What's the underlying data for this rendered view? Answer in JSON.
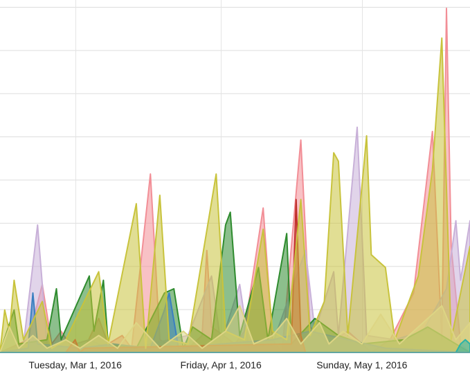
{
  "chart_data": {
    "type": "area",
    "title": "",
    "xlabel": "",
    "ylabel": "",
    "x_tick_labels": [
      {
        "label": "Tuesday, Mar 1, 2016",
        "date": "2016-03-01"
      },
      {
        "label": "Friday, Apr 1, 2016",
        "date": "2016-04-01"
      },
      {
        "label": "Sunday, May 1, 2016",
        "date": "2016-05-01"
      }
    ],
    "x_range": [
      "2016-02-14",
      "2016-05-24"
    ],
    "y_gridlines": 8,
    "grid": true,
    "legend": "none",
    "series": [
      {
        "color": "#f28e96",
        "points": [
          [
            "2016-02-14",
            0
          ],
          [
            "2016-02-20",
            0.3
          ],
          [
            "2016-02-23",
            1.6
          ],
          [
            "2016-02-25",
            0.2
          ],
          [
            "2016-02-27",
            0.5
          ],
          [
            "2016-03-01",
            0
          ],
          [
            "2016-03-03",
            0.1
          ],
          [
            "2016-03-06",
            0.8
          ],
          [
            "2016-03-08",
            0.2
          ],
          [
            "2016-03-11",
            0.4
          ],
          [
            "2016-03-13",
            0.1
          ],
          [
            "2016-03-17",
            4.2
          ],
          [
            "2016-03-19",
            0.3
          ],
          [
            "2016-03-24",
            0
          ],
          [
            "2016-03-28",
            0.4
          ],
          [
            "2016-03-29",
            2.4
          ],
          [
            "2016-03-30",
            0.6
          ],
          [
            "2016-04-04",
            0.2
          ],
          [
            "2016-04-06",
            0.5
          ],
          [
            "2016-04-10",
            3.4
          ],
          [
            "2016-04-12",
            0.3
          ],
          [
            "2016-04-14",
            0
          ],
          [
            "2016-04-18",
            5.0
          ],
          [
            "2016-04-20",
            0.6
          ],
          [
            "2016-04-24",
            0.2
          ],
          [
            "2016-04-28",
            0.5
          ],
          [
            "2016-05-03",
            0
          ],
          [
            "2016-05-07",
            0.3
          ],
          [
            "2016-05-12",
            1.4
          ],
          [
            "2016-05-16",
            5.2
          ],
          [
            "2016-05-18",
            0.3
          ],
          [
            "2016-05-19",
            8.1
          ],
          [
            "2016-05-20",
            2.5
          ],
          [
            "2016-05-22",
            0.2
          ],
          [
            "2016-05-24",
            0
          ]
        ]
      },
      {
        "color": "#c8b0d8",
        "points": [
          [
            "2016-02-14",
            0
          ],
          [
            "2016-02-19",
            0.2
          ],
          [
            "2016-02-22",
            3.0
          ],
          [
            "2016-02-24",
            0.2
          ],
          [
            "2016-02-27",
            0.1
          ],
          [
            "2016-03-04",
            0.3
          ],
          [
            "2016-03-10",
            0
          ],
          [
            "2016-03-17",
            0.2
          ],
          [
            "2016-03-25",
            0.4
          ],
          [
            "2016-03-30",
            1.8
          ],
          [
            "2016-04-01",
            0.2
          ],
          [
            "2016-04-05",
            1.6
          ],
          [
            "2016-04-07",
            0.1
          ],
          [
            "2016-04-12",
            0.2
          ],
          [
            "2016-04-19",
            2.4
          ],
          [
            "2016-04-21",
            0.5
          ],
          [
            "2016-04-25",
            1.9
          ],
          [
            "2016-04-26",
            0.4
          ],
          [
            "2016-04-30",
            5.3
          ],
          [
            "2016-05-02",
            0.4
          ],
          [
            "2016-05-08",
            0.3
          ],
          [
            "2016-05-14",
            0.5
          ],
          [
            "2016-05-19",
            1.5
          ],
          [
            "2016-05-21",
            3.1
          ],
          [
            "2016-05-22",
            1.7
          ],
          [
            "2016-05-24",
            3.1
          ]
        ]
      },
      {
        "color": "#2e8b2e",
        "points": [
          [
            "2016-02-14",
            0
          ],
          [
            "2016-02-17",
            1.0
          ],
          [
            "2016-02-18",
            0.2
          ],
          [
            "2016-02-24",
            0.3
          ],
          [
            "2016-02-26",
            1.5
          ],
          [
            "2016-02-27",
            0.3
          ],
          [
            "2016-03-04",
            1.8
          ],
          [
            "2016-03-05",
            0.5
          ],
          [
            "2016-03-07",
            1.7
          ],
          [
            "2016-03-08",
            0.2
          ],
          [
            "2016-03-14",
            0.1
          ],
          [
            "2016-03-20",
            1.4
          ],
          [
            "2016-03-22",
            1.5
          ],
          [
            "2016-03-24",
            0.1
          ],
          [
            "2016-03-26",
            0.6
          ],
          [
            "2016-03-30",
            0.3
          ],
          [
            "2016-04-02",
            3.0
          ],
          [
            "2016-04-03",
            3.3
          ],
          [
            "2016-04-05",
            0.4
          ],
          [
            "2016-04-09",
            2.0
          ],
          [
            "2016-04-11",
            0.3
          ],
          [
            "2016-04-15",
            2.8
          ],
          [
            "2016-04-16",
            0.2
          ],
          [
            "2016-04-21",
            0.8
          ],
          [
            "2016-04-26",
            0.4
          ],
          [
            "2016-05-01",
            0.2
          ],
          [
            "2016-05-10",
            0.3
          ],
          [
            "2016-05-15",
            0.6
          ],
          [
            "2016-05-24",
            0
          ]
        ]
      },
      {
        "color": "#3a7fc0",
        "points": [
          [
            "2016-02-14",
            0
          ],
          [
            "2016-02-20",
            0.1
          ],
          [
            "2016-02-21",
            1.4
          ],
          [
            "2016-02-22",
            0.2
          ],
          [
            "2016-03-02",
            0.1
          ],
          [
            "2016-03-09",
            0.2
          ],
          [
            "2016-03-17",
            0.1
          ],
          [
            "2016-03-20",
            1.0
          ],
          [
            "2016-03-21",
            1.4
          ],
          [
            "2016-03-23",
            0.1
          ],
          [
            "2016-04-01",
            0.2
          ],
          [
            "2016-04-12",
            0.3
          ],
          [
            "2016-04-20",
            0.5
          ],
          [
            "2016-05-06",
            0.1
          ],
          [
            "2016-05-24",
            0
          ]
        ]
      },
      {
        "color": "#c0302c",
        "points": [
          [
            "2016-02-14",
            0
          ],
          [
            "2016-02-28",
            0
          ],
          [
            "2016-03-01",
            0.3
          ],
          [
            "2016-03-02",
            0
          ],
          [
            "2016-03-03",
            0.1
          ],
          [
            "2016-04-16",
            0.2
          ],
          [
            "2016-04-17",
            3.6
          ],
          [
            "2016-04-18",
            0.4
          ],
          [
            "2016-04-19",
            0
          ],
          [
            "2016-05-24",
            0
          ]
        ]
      },
      {
        "color": "#c8c33c",
        "points": [
          [
            "2016-02-14",
            0
          ],
          [
            "2016-02-15",
            1.0
          ],
          [
            "2016-02-16",
            0.5
          ],
          [
            "2016-02-17",
            1.7
          ],
          [
            "2016-02-19",
            0.3
          ],
          [
            "2016-02-23",
            1.2
          ],
          [
            "2016-02-25",
            0.1
          ],
          [
            "2016-02-28",
            0.3
          ],
          [
            "2016-03-06",
            1.9
          ],
          [
            "2016-03-08",
            0.2
          ],
          [
            "2016-03-14",
            3.5
          ],
          [
            "2016-03-16",
            0.1
          ],
          [
            "2016-03-19",
            3.7
          ],
          [
            "2016-03-21",
            0.3
          ],
          [
            "2016-03-25",
            0.2
          ],
          [
            "2016-03-31",
            4.2
          ],
          [
            "2016-04-02",
            0.5
          ],
          [
            "2016-04-06",
            0.3
          ],
          [
            "2016-04-10",
            2.9
          ],
          [
            "2016-04-12",
            0.5
          ],
          [
            "2016-04-15",
            0.3
          ],
          [
            "2016-04-18",
            3.6
          ],
          [
            "2016-04-20",
            0.4
          ],
          [
            "2016-04-23",
            1.2
          ],
          [
            "2016-04-25",
            4.7
          ],
          [
            "2016-04-26",
            4.5
          ],
          [
            "2016-04-28",
            0.4
          ],
          [
            "2016-05-01",
            3.9
          ],
          [
            "2016-05-02",
            5.1
          ],
          [
            "2016-05-03",
            2.3
          ],
          [
            "2016-05-06",
            2.0
          ],
          [
            "2016-05-08",
            0.3
          ],
          [
            "2016-05-13",
            1.8
          ],
          [
            "2016-05-16",
            4.3
          ],
          [
            "2016-05-18",
            7.4
          ],
          [
            "2016-05-20",
            0.3
          ],
          [
            "2016-05-24",
            2.5
          ]
        ]
      },
      {
        "color": "#ddd584",
        "points": [
          [
            "2016-02-14",
            0
          ],
          [
            "2016-02-16",
            0.6
          ],
          [
            "2016-02-18",
            0.1
          ],
          [
            "2016-02-21",
            0.4
          ],
          [
            "2016-02-24",
            0.1
          ],
          [
            "2016-02-28",
            0.3
          ],
          [
            "2016-03-02",
            0.1
          ],
          [
            "2016-03-06",
            0.4
          ],
          [
            "2016-03-10",
            0.1
          ],
          [
            "2016-03-14",
            0.7
          ],
          [
            "2016-03-19",
            0.1
          ],
          [
            "2016-03-24",
            0.5
          ],
          [
            "2016-03-28",
            0.1
          ],
          [
            "2016-04-02",
            0.5
          ],
          [
            "2016-04-05",
            1.1
          ],
          [
            "2016-04-08",
            0.2
          ],
          [
            "2016-04-12",
            0.4
          ],
          [
            "2016-04-15",
            0.8
          ],
          [
            "2016-04-18",
            0.2
          ],
          [
            "2016-04-22",
            0.7
          ],
          [
            "2016-04-24",
            0.2
          ],
          [
            "2016-04-27",
            0.5
          ],
          [
            "2016-05-01",
            0.2
          ],
          [
            "2016-05-05",
            0.9
          ],
          [
            "2016-05-09",
            0.2
          ],
          [
            "2016-05-13",
            0.6
          ],
          [
            "2016-05-18",
            1.1
          ],
          [
            "2016-05-21",
            0.3
          ],
          [
            "2016-05-24",
            0.7
          ]
        ]
      },
      {
        "color": "#2bb3a8",
        "points": [
          [
            "2016-02-14",
            0
          ],
          [
            "2016-05-21",
            0
          ],
          [
            "2016-05-22",
            0.2
          ],
          [
            "2016-05-23",
            0.3
          ],
          [
            "2016-05-24",
            0.2
          ]
        ]
      }
    ]
  }
}
